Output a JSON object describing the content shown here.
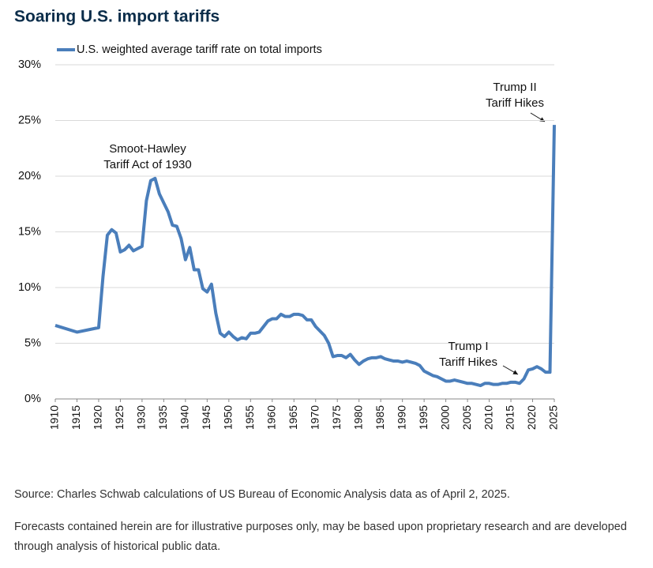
{
  "chart_data": {
    "type": "line",
    "title": "Soaring U.S. import tariffs",
    "x": [
      1910,
      1915,
      1920,
      1921,
      1922,
      1923,
      1924,
      1925,
      1926,
      1927,
      1928,
      1929,
      1930,
      1931,
      1932,
      1933,
      1934,
      1935,
      1936,
      1937,
      1938,
      1939,
      1940,
      1941,
      1942,
      1943,
      1944,
      1945,
      1946,
      1947,
      1948,
      1949,
      1950,
      1951,
      1952,
      1953,
      1954,
      1955,
      1956,
      1957,
      1958,
      1959,
      1960,
      1961,
      1962,
      1963,
      1964,
      1965,
      1966,
      1967,
      1968,
      1969,
      1970,
      1971,
      1972,
      1973,
      1974,
      1975,
      1976,
      1977,
      1978,
      1979,
      1980,
      1981,
      1982,
      1983,
      1984,
      1985,
      1986,
      1987,
      1988,
      1989,
      1990,
      1991,
      1992,
      1993,
      1994,
      1995,
      1996,
      1997,
      1998,
      1999,
      2000,
      2001,
      2002,
      2003,
      2004,
      2005,
      2006,
      2007,
      2008,
      2009,
      2010,
      2011,
      2012,
      2013,
      2014,
      2015,
      2016,
      2017,
      2018,
      2019,
      2020,
      2021,
      2022,
      2023,
      2024,
      2025
    ],
    "series": [
      {
        "name": "U.S. weighted average tariff rate on total imports",
        "color": "#4a7ebb",
        "values": [
          6.6,
          6.0,
          6.4,
          11.0,
          14.7,
          15.2,
          14.9,
          13.2,
          13.4,
          13.8,
          13.3,
          13.5,
          13.7,
          17.8,
          19.6,
          19.8,
          18.4,
          17.6,
          16.8,
          15.6,
          15.5,
          14.4,
          12.5,
          13.6,
          11.6,
          11.6,
          9.9,
          9.6,
          10.3,
          7.7,
          5.9,
          5.6,
          6.0,
          5.6,
          5.3,
          5.5,
          5.4,
          5.9,
          5.9,
          6.0,
          6.5,
          7.0,
          7.2,
          7.2,
          7.6,
          7.4,
          7.4,
          7.6,
          7.6,
          7.5,
          7.1,
          7.1,
          6.5,
          6.1,
          5.7,
          5.0,
          3.8,
          3.9,
          3.9,
          3.7,
          4.0,
          3.5,
          3.1,
          3.4,
          3.6,
          3.7,
          3.7,
          3.8,
          3.6,
          3.5,
          3.4,
          3.4,
          3.3,
          3.4,
          3.3,
          3.2,
          3.0,
          2.5,
          2.3,
          2.1,
          2.0,
          1.8,
          1.6,
          1.6,
          1.7,
          1.6,
          1.5,
          1.4,
          1.4,
          1.3,
          1.2,
          1.4,
          1.4,
          1.3,
          1.3,
          1.4,
          1.4,
          1.5,
          1.5,
          1.4,
          1.8,
          2.6,
          2.7,
          2.9,
          2.7,
          2.4,
          2.4,
          24.6
        ]
      }
    ],
    "xlim": [
      1910,
      2025
    ],
    "xticks": [
      1910,
      1915,
      1920,
      1925,
      1930,
      1935,
      1940,
      1945,
      1950,
      1955,
      1960,
      1965,
      1970,
      1975,
      1980,
      1985,
      1990,
      1995,
      2000,
      2005,
      2010,
      2015,
      2020,
      2025
    ],
    "ylim": [
      0,
      30
    ],
    "yticks": [
      {
        "value": 0,
        "label": "0%"
      },
      {
        "value": 5,
        "label": "5%"
      },
      {
        "value": 10,
        "label": "10%"
      },
      {
        "value": 15,
        "label": "15%"
      },
      {
        "value": 20,
        "label": "20%"
      },
      {
        "value": 25,
        "label": "25%"
      },
      {
        "value": 30,
        "label": "30%"
      }
    ],
    "grid": true,
    "annotations": [
      [
        "Smoot-Hawley",
        "Tariff Act of 1930"
      ],
      [
        "Trump II",
        "Tariff Hikes"
      ],
      [
        "Trump I",
        "Tariff Hikes"
      ]
    ]
  },
  "source": "Source: Charles Schwab calculations of US Bureau of Economic Analysis data as of April 2, 2025.",
  "note": "Forecasts contained herein are for illustrative purposes only, may be based upon proprietary research and are developed through analysis of historical public data."
}
